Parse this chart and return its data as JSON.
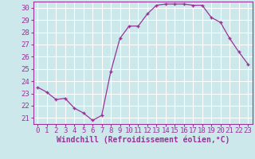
{
  "x": [
    0,
    1,
    2,
    3,
    4,
    5,
    6,
    7,
    8,
    9,
    10,
    11,
    12,
    13,
    14,
    15,
    16,
    17,
    18,
    19,
    20,
    21,
    22,
    23
  ],
  "y": [
    23.5,
    23.1,
    22.5,
    22.6,
    21.8,
    21.4,
    20.8,
    21.2,
    24.8,
    27.5,
    28.5,
    28.5,
    29.5,
    30.2,
    30.3,
    30.3,
    30.3,
    30.2,
    30.2,
    29.2,
    28.8,
    27.5,
    26.4,
    25.4
  ],
  "line_color": "#993399",
  "marker": "+",
  "marker_color": "#993399",
  "bg_color": "#cce8eb",
  "grid_color": "#ffffff",
  "xlabel": "Windchill (Refroidissement éolien,°C)",
  "xlabel_color": "#993399",
  "tick_color": "#993399",
  "spine_color": "#993399",
  "ylim_min": 20.5,
  "ylim_max": 30.5,
  "xlim_min": -0.5,
  "xlim_max": 23.5,
  "yticks": [
    21,
    22,
    23,
    24,
    25,
    26,
    27,
    28,
    29,
    30
  ],
  "xticks": [
    0,
    1,
    2,
    3,
    4,
    5,
    6,
    7,
    8,
    9,
    10,
    11,
    12,
    13,
    14,
    15,
    16,
    17,
    18,
    19,
    20,
    21,
    22,
    23
  ],
  "tick_fontsize": 6.5,
  "xlabel_fontsize": 7,
  "linewidth": 0.9,
  "markersize": 3.5,
  "markeredgewidth": 1.0
}
